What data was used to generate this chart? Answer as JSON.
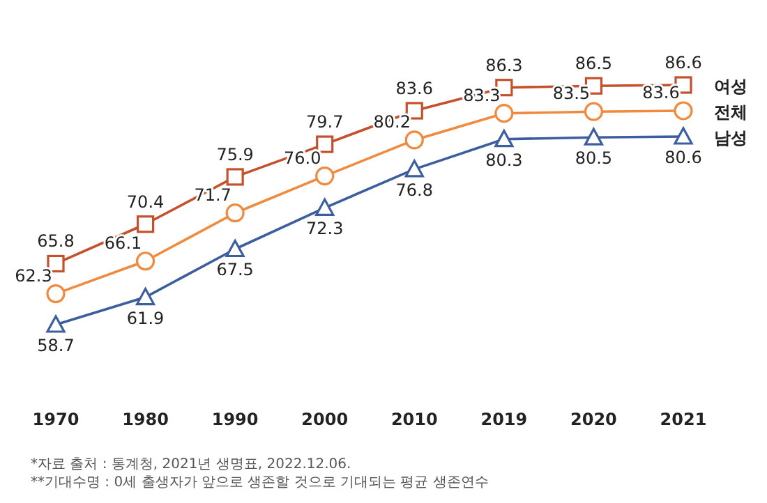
{
  "chart_data": {
    "type": "line",
    "categories": [
      "1970",
      "1980",
      "1990",
      "2000",
      "2010",
      "2019",
      "2020",
      "2021"
    ],
    "series": [
      {
        "name": "여성",
        "color": "#c4502c",
        "marker": "square",
        "values": [
          65.8,
          70.4,
          75.9,
          79.7,
          83.6,
          86.3,
          86.5,
          86.6
        ],
        "value_labels": [
          "65.8",
          "70.4",
          "75.9",
          "79.7",
          "83.6",
          "86.3",
          "86.5",
          "86.6"
        ]
      },
      {
        "name": "전체",
        "color": "#f08a3e",
        "marker": "circle",
        "values": [
          62.3,
          66.1,
          71.7,
          76.0,
          80.2,
          83.3,
          83.5,
          83.6
        ],
        "value_labels": [
          "62.3",
          "66.1",
          "71.7",
          "76.0",
          "80.2",
          "83.3",
          "83.5",
          "83.6"
        ]
      },
      {
        "name": "남성",
        "color": "#3d5e9e",
        "marker": "triangle",
        "values": [
          58.7,
          61.9,
          67.5,
          72.3,
          76.8,
          80.3,
          80.5,
          80.6
        ],
        "value_labels": [
          "58.7",
          "61.9",
          "67.5",
          "72.3",
          "76.8",
          "80.3",
          "80.5",
          "80.6"
        ]
      }
    ],
    "tick_labels": "x",
    "grid": false,
    "line_style": "solid",
    "annotations": [
      "*자료 출처 : 통계청, 2021년 생명표, 2022.12.06.",
      "**기대수명 : 0세 출생자가 앞으로 생존할 것으로 기대되는 평균 생존연수"
    ]
  }
}
